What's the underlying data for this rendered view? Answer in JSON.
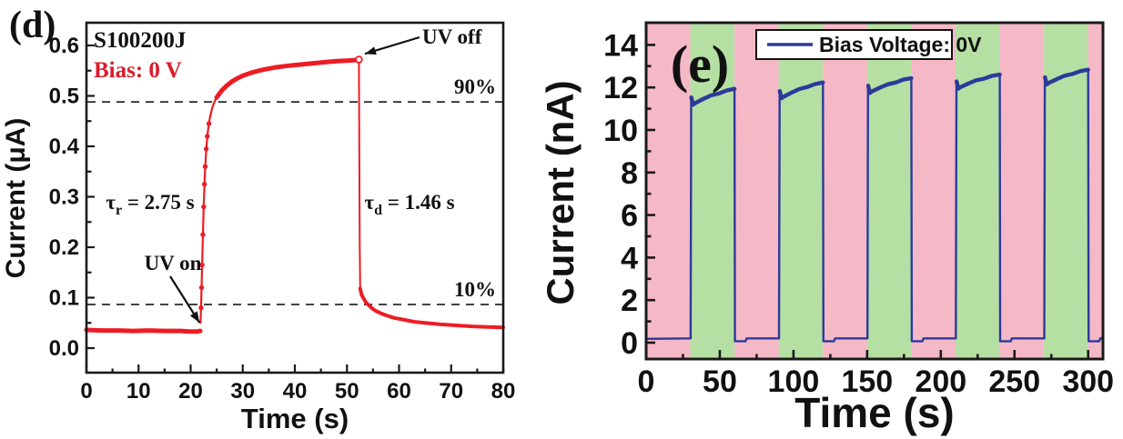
{
  "figure": {
    "background": "#ffffff"
  },
  "chart_data": [
    {
      "panel_label": "(d)",
      "type": "line",
      "sample_label": "S100200J",
      "bias_label": "Bias: 0 V",
      "bias_color": "#dd1b2a",
      "series_color": "#ed1c24",
      "axis_color": "#1a1a1a",
      "xlabel": "Time (s)",
      "ylabel": "Current (μA)",
      "xlim": [
        0,
        80
      ],
      "ylim": [
        -0.049,
        0.645
      ],
      "xticks": [
        0,
        10,
        20,
        30,
        40,
        50,
        60,
        70,
        80
      ],
      "xticks_minor": [
        5,
        15,
        25,
        35,
        45,
        55,
        65,
        75
      ],
      "yticks": [
        0.0,
        0.1,
        0.2,
        0.3,
        0.4,
        0.5,
        0.6
      ],
      "yticks_minor": [
        0.05,
        0.15,
        0.25,
        0.35,
        0.45,
        0.55
      ],
      "reference_lines": [
        {
          "value": 0.488,
          "label": "90%"
        },
        {
          "value": 0.0865,
          "label": "10%"
        }
      ],
      "annotations": {
        "uv_off": {
          "text": "UV off",
          "arrow_to_point": [
            52.4,
            0.578
          ]
        },
        "uv_on": {
          "text": "UV on",
          "arrow_to_point": [
            21.7,
            0.045
          ]
        },
        "tau_rise": {
          "symbol": "τ",
          "subscript": "r",
          "value_text": " = 2.75 s"
        },
        "tau_decay": {
          "symbol": "τ",
          "subscript": "d",
          "value_text": " = 1.46 s"
        }
      },
      "series": {
        "baseline": [
          [
            0,
            0.036
          ],
          [
            3,
            0.035
          ],
          [
            6,
            0.035
          ],
          [
            9,
            0.034
          ],
          [
            12,
            0.035
          ],
          [
            15,
            0.034
          ],
          [
            18,
            0.034
          ],
          [
            20,
            0.033
          ],
          [
            21.3,
            0.033
          ],
          [
            21.85,
            0.034
          ]
        ],
        "rise": [
          [
            21.9,
            0.05
          ],
          [
            22.0,
            0.08
          ],
          [
            22.1,
            0.12
          ],
          [
            22.2,
            0.165
          ],
          [
            22.35,
            0.225
          ],
          [
            22.5,
            0.28
          ],
          [
            22.65,
            0.325
          ],
          [
            22.8,
            0.36
          ],
          [
            23.0,
            0.395
          ],
          [
            23.2,
            0.42
          ],
          [
            23.5,
            0.445
          ],
          [
            23.8,
            0.462
          ],
          [
            24.2,
            0.478
          ],
          [
            24.6,
            0.489
          ],
          [
            25.0,
            0.497
          ]
        ],
        "plateau": [
          [
            25,
            0.497
          ],
          [
            26,
            0.511
          ],
          [
            27,
            0.521
          ],
          [
            28,
            0.529
          ],
          [
            29,
            0.535
          ],
          [
            30,
            0.54
          ],
          [
            32,
            0.547
          ],
          [
            34,
            0.552
          ],
          [
            36,
            0.556
          ],
          [
            38,
            0.559
          ],
          [
            40,
            0.561
          ],
          [
            42,
            0.563
          ],
          [
            44,
            0.565
          ],
          [
            46,
            0.567
          ],
          [
            48,
            0.569
          ],
          [
            50,
            0.57
          ],
          [
            51.5,
            0.571
          ],
          [
            52.3,
            0.572
          ]
        ],
        "fall": [
          [
            52.3,
            0.572
          ],
          [
            52.45,
            0.2
          ],
          [
            52.55,
            0.118
          ]
        ],
        "decay": [
          [
            52.55,
            0.118
          ],
          [
            52.8,
            0.106
          ],
          [
            53.2,
            0.098
          ],
          [
            53.7,
            0.09
          ],
          [
            54.2,
            0.085
          ],
          [
            54.8,
            0.079
          ],
          [
            55.5,
            0.074
          ],
          [
            56.5,
            0.069
          ],
          [
            57.5,
            0.065
          ],
          [
            59,
            0.06
          ],
          [
            61,
            0.056
          ],
          [
            63,
            0.052
          ],
          [
            65,
            0.05
          ],
          [
            68,
            0.047
          ],
          [
            71,
            0.045
          ],
          [
            74,
            0.043
          ],
          [
            77,
            0.042
          ],
          [
            80,
            0.041
          ]
        ]
      },
      "rise_markers": [
        [
          22.0,
          0.08
        ],
        [
          22.1,
          0.12
        ],
        [
          22.2,
          0.165
        ],
        [
          22.35,
          0.225
        ],
        [
          22.5,
          0.28
        ],
        [
          22.65,
          0.325
        ],
        [
          22.8,
          0.36
        ],
        [
          23.0,
          0.395
        ],
        [
          23.2,
          0.42
        ],
        [
          23.5,
          0.445
        ]
      ],
      "peak_marker": [
        52.3,
        0.572
      ]
    },
    {
      "panel_label": "(e)",
      "type": "line",
      "legend_label": "Bias Voltage: 0V",
      "series_color": "#2c3a99",
      "band_off_color": "#f5b8c7",
      "band_on_color": "#b6dfa4",
      "axis_color": "#1a1a1a",
      "xlabel": "Time (s)",
      "ylabel": "Current (nA)",
      "xlim": [
        0,
        310
      ],
      "ylim": [
        -0.77,
        15.04
      ],
      "xticks": [
        0,
        50,
        100,
        150,
        200,
        250,
        300
      ],
      "xticks_minor": [
        25,
        75,
        125,
        175,
        225,
        275
      ],
      "yticks": [
        0,
        2,
        4,
        6,
        8,
        10,
        12,
        14
      ],
      "yticks_minor": [
        1,
        3,
        5,
        7,
        9,
        11,
        13
      ],
      "band_period_s": 30,
      "baseline_nA": 0.18,
      "post_fall_nA": 0.07,
      "pulses": [
        {
          "t_on": 30.6,
          "t_off": 60,
          "i_start": 11.25,
          "i_end": 11.95
        },
        {
          "t_on": 90.6,
          "t_off": 120,
          "i_start": 11.55,
          "i_end": 12.25
        },
        {
          "t_on": 150.6,
          "t_off": 180,
          "i_start": 11.8,
          "i_end": 12.45
        },
        {
          "t_on": 210.6,
          "t_off": 240,
          "i_start": 12.0,
          "i_end": 12.62
        },
        {
          "t_on": 270.6,
          "t_off": 300,
          "i_start": 12.2,
          "i_end": 12.85
        }
      ]
    }
  ]
}
